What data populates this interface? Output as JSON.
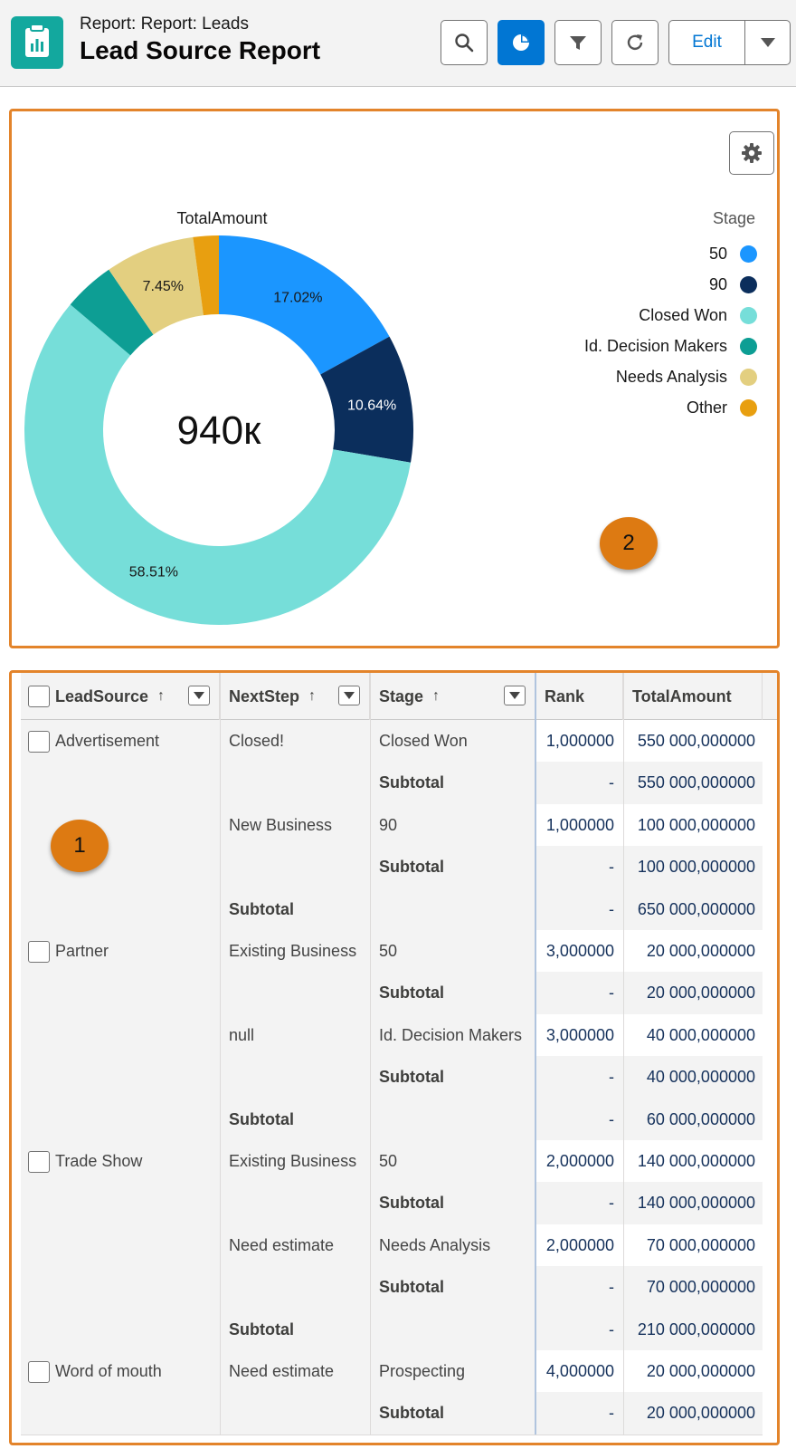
{
  "header": {
    "pretitle": "Report:  Report: Leads",
    "title": "Lead Source Report",
    "edit_label": "Edit",
    "buttons": [
      "search-icon",
      "chart-icon",
      "filter-icon",
      "refresh-icon",
      "chevron-down-icon"
    ]
  },
  "chart_data": {
    "type": "pie",
    "title": "TotalAmount",
    "center_label": "940к",
    "legend_title": "Stage",
    "legend_position": "right",
    "categories": [
      "50",
      "90",
      "Closed Won",
      "Id. Decision Makers",
      "Needs Analysis",
      "Other"
    ],
    "values": [
      17.02,
      10.64,
      58.51,
      4.26,
      7.45,
      2.13
    ],
    "data_labels": [
      "17.02%",
      "10.64%",
      "58.51%",
      "",
      "7.45%",
      ""
    ],
    "colors": [
      "#1b96ff",
      "#0b2e5c",
      "#76ded9",
      "#0d9e94",
      "#e3cf80",
      "#e89f10"
    ]
  },
  "markers": {
    "chart": "2",
    "table": "1"
  },
  "table": {
    "columns": [
      {
        "label": "LeadSource",
        "sort": "↑"
      },
      {
        "label": "NextStep",
        "sort": "↑"
      },
      {
        "label": "Stage",
        "sort": "↑"
      },
      {
        "label": "Rank",
        "sort": ""
      },
      {
        "label": "TotalAmount",
        "sort": ""
      }
    ],
    "groups": [
      {
        "lead_source": "Advertisement",
        "next_steps": [
          {
            "name": "Closed!",
            "stage": "Closed Won",
            "rank": "1,000000",
            "amount": "550 000,000000",
            "subtotal_rank": "-",
            "subtotal_amount": "550 000,000000"
          },
          {
            "name": "New Business",
            "stage": "90",
            "rank": "1,000000",
            "amount": "100 000,000000",
            "subtotal_rank": "-",
            "subtotal_amount": "100 000,000000"
          }
        ],
        "subtotal_rank": "-",
        "subtotal_amount": "650 000,000000"
      },
      {
        "lead_source": "Partner",
        "next_steps": [
          {
            "name": "Existing Business",
            "stage": "50",
            "rank": "3,000000",
            "amount": "20 000,000000",
            "subtotal_rank": "-",
            "subtotal_amount": "20 000,000000"
          },
          {
            "name": "null",
            "stage": "Id. Decision Makers",
            "rank": "3,000000",
            "amount": "40 000,000000",
            "subtotal_rank": "-",
            "subtotal_amount": "40 000,000000"
          }
        ],
        "subtotal_rank": "-",
        "subtotal_amount": "60 000,000000"
      },
      {
        "lead_source": "Trade Show",
        "next_steps": [
          {
            "name": "Existing Business",
            "stage": "50",
            "rank": "2,000000",
            "amount": "140 000,000000",
            "subtotal_rank": "-",
            "subtotal_amount": "140 000,000000"
          },
          {
            "name": "Need estimate",
            "stage": "Needs Analysis",
            "rank": "2,000000",
            "amount": "70 000,000000",
            "subtotal_rank": "-",
            "subtotal_amount": "70 000,000000"
          }
        ],
        "subtotal_rank": "-",
        "subtotal_amount": "210 000,000000"
      },
      {
        "lead_source": "Word of mouth",
        "next_steps": [
          {
            "name": "Need estimate",
            "stage": "Prospecting",
            "rank": "4,000000",
            "amount": "20 000,000000",
            "subtotal_rank": "-",
            "subtotal_amount": "20 000,000000"
          }
        ],
        "subtotal_rank": "",
        "subtotal_amount": ""
      }
    ],
    "subtotal_label": "Subtotal"
  }
}
